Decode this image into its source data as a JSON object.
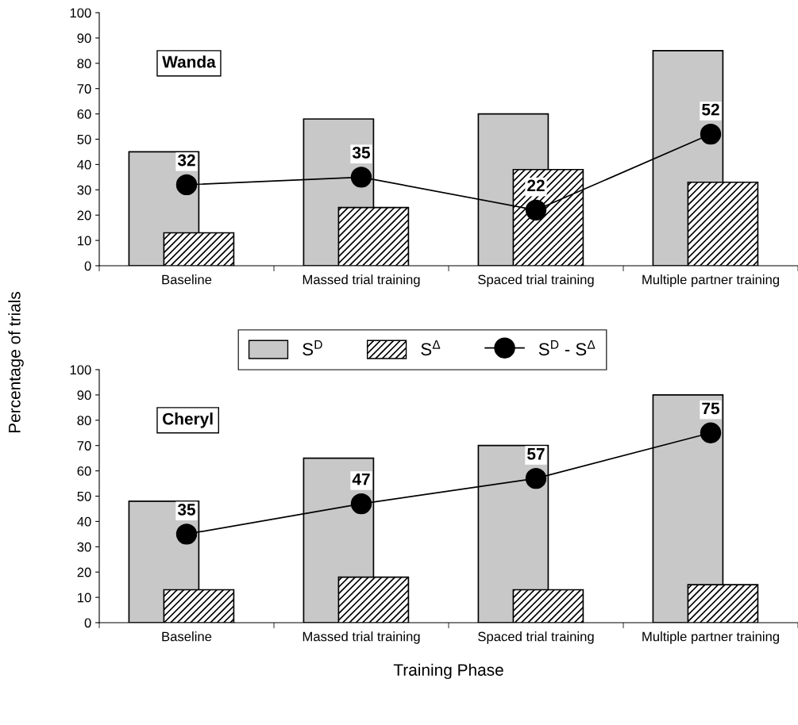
{
  "chart_data": [
    {
      "type": "bar",
      "categories": [
        "Baseline",
        "Massed trial training",
        "Spaced trial training",
        "Multiple partner training"
      ],
      "ylabel": "Percentage of trials",
      "ylim": [
        0,
        100
      ],
      "yticks": [
        0,
        10,
        20,
        30,
        40,
        50,
        60,
        70,
        80,
        90,
        100
      ],
      "annotations": [
        "Wanda"
      ],
      "legend": "bottom",
      "grid": false,
      "series": [
        {
          "name": "S$^{D}$",
          "color": "#c8c8c8",
          "values": [
            45,
            58,
            60,
            85
          ]
        },
        {
          "name": "S$^{Δ}$",
          "color": "#000000",
          "values": [
            13,
            23,
            38,
            33
          ]
        },
        {
          "name": "S$^{D}$ - S$^{Δ}$",
          "type": "line",
          "marker": "circle",
          "color": "#000000",
          "values": [
            32,
            35,
            22,
            52
          ],
          "value_labels": [
            "32",
            "35",
            "22",
            "52"
          ]
        }
      ]
    },
    {
      "type": "bar",
      "categories": [
        "Baseline",
        "Massed trial training",
        "Spaced trial training",
        "Multiple partner training"
      ],
      "xlabel": "Training Phase",
      "ylim": [
        0,
        100
      ],
      "yticks": [
        0,
        10,
        20,
        30,
        40,
        50,
        60,
        70,
        80,
        90,
        100
      ],
      "annotations": [
        "Cheryl"
      ],
      "grid": false,
      "series": [
        {
          "color": "#c8c8c8",
          "values": [
            48,
            65,
            70,
            90
          ]
        },
        {
          "color": "#000000",
          "values": [
            13,
            18,
            13,
            15
          ]
        },
        {
          "type": "line",
          "marker": "circle",
          "color": "#000000",
          "values": [
            35,
            47,
            57,
            75
          ],
          "value_labels": [
            "35",
            "47",
            "57",
            "75"
          ]
        }
      ]
    }
  ]
}
